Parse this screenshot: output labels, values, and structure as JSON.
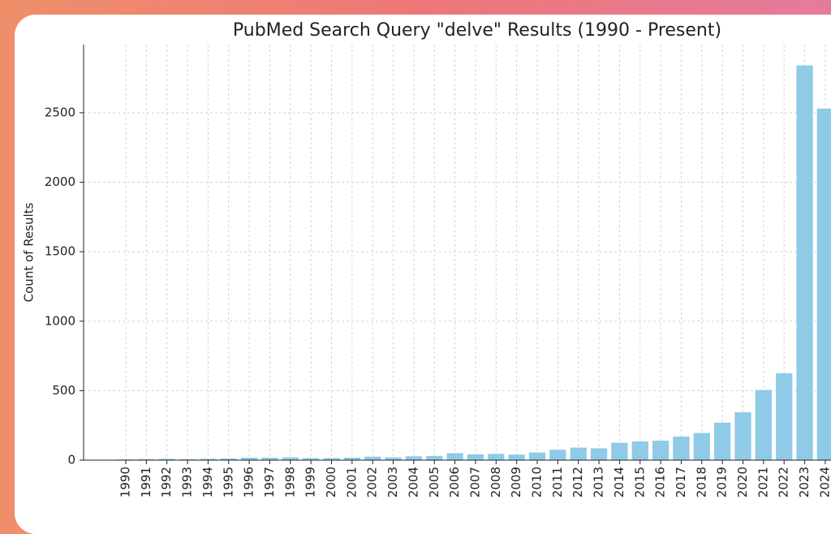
{
  "chart_data": {
    "type": "bar",
    "title": "PubMed Search Query \"delve\" Results (1990 - Present)",
    "y_label": "Count of Results",
    "categories": [
      "1990",
      "1991",
      "1992",
      "1993",
      "1994",
      "1995",
      "1996",
      "1997",
      "1998",
      "1999",
      "2000",
      "2001",
      "2002",
      "2003",
      "2004",
      "2005",
      "2006",
      "2007",
      "2008",
      "2009",
      "2010",
      "2011",
      "2012",
      "2013",
      "2014",
      "2015",
      "2016",
      "2017",
      "2018",
      "2019",
      "2020",
      "2021",
      "2022",
      "2023",
      "2024"
    ],
    "values": [
      5,
      8,
      10,
      8,
      10,
      12,
      18,
      18,
      20,
      15,
      15,
      18,
      25,
      20,
      28,
      30,
      50,
      42,
      45,
      40,
      55,
      75,
      90,
      85,
      125,
      135,
      140,
      170,
      195,
      270,
      345,
      505,
      625,
      2840,
      2530
    ],
    "color": "#8fcae6",
    "ylim": [
      0,
      2990
    ],
    "yticks": [
      0,
      500,
      1000,
      1500,
      2000,
      2500
    ],
    "grid": true
  }
}
